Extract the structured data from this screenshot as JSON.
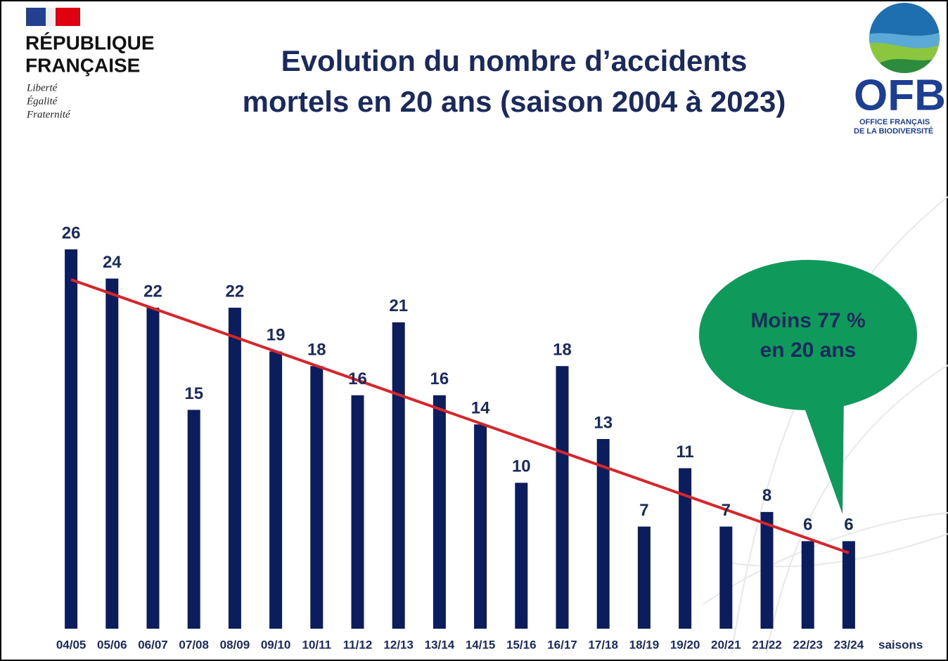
{
  "header": {
    "logo_left": {
      "lines": [
        "RÉPUBLIQUE",
        "FRANÇAISE"
      ],
      "motto": [
        "Liberté",
        "Égalité",
        "Fraternité"
      ]
    },
    "logo_right": {
      "acronym": "OFB",
      "lines": [
        "OFFICE FRANÇAIS",
        "DE LA BIODIVERSITÉ"
      ]
    }
  },
  "chart_data": {
    "type": "bar",
    "title": [
      "Evolution du nombre d’accidents",
      "mortels en 20 ans (saison 2004 à 2023)"
    ],
    "x_label": "saisons",
    "annotation": [
      "Moins 77 %",
      "en 20 ans"
    ],
    "color": "#0b1d5c",
    "trend_color": "#d7262b",
    "categories": [
      "04/05",
      "05/06",
      "06/07",
      "07/08",
      "08/09",
      "09/10",
      "10/11",
      "11/12",
      "12/13",
      "13/14",
      "14/15",
      "15/16",
      "16/17",
      "17/18",
      "18/19",
      "19/20",
      "20/21",
      "21/22",
      "22/23",
      "23/24"
    ],
    "values": [
      26,
      24,
      22,
      15,
      22,
      19,
      18,
      16,
      21,
      16,
      14,
      10,
      18,
      13,
      7,
      11,
      7,
      8,
      6,
      6
    ]
  }
}
